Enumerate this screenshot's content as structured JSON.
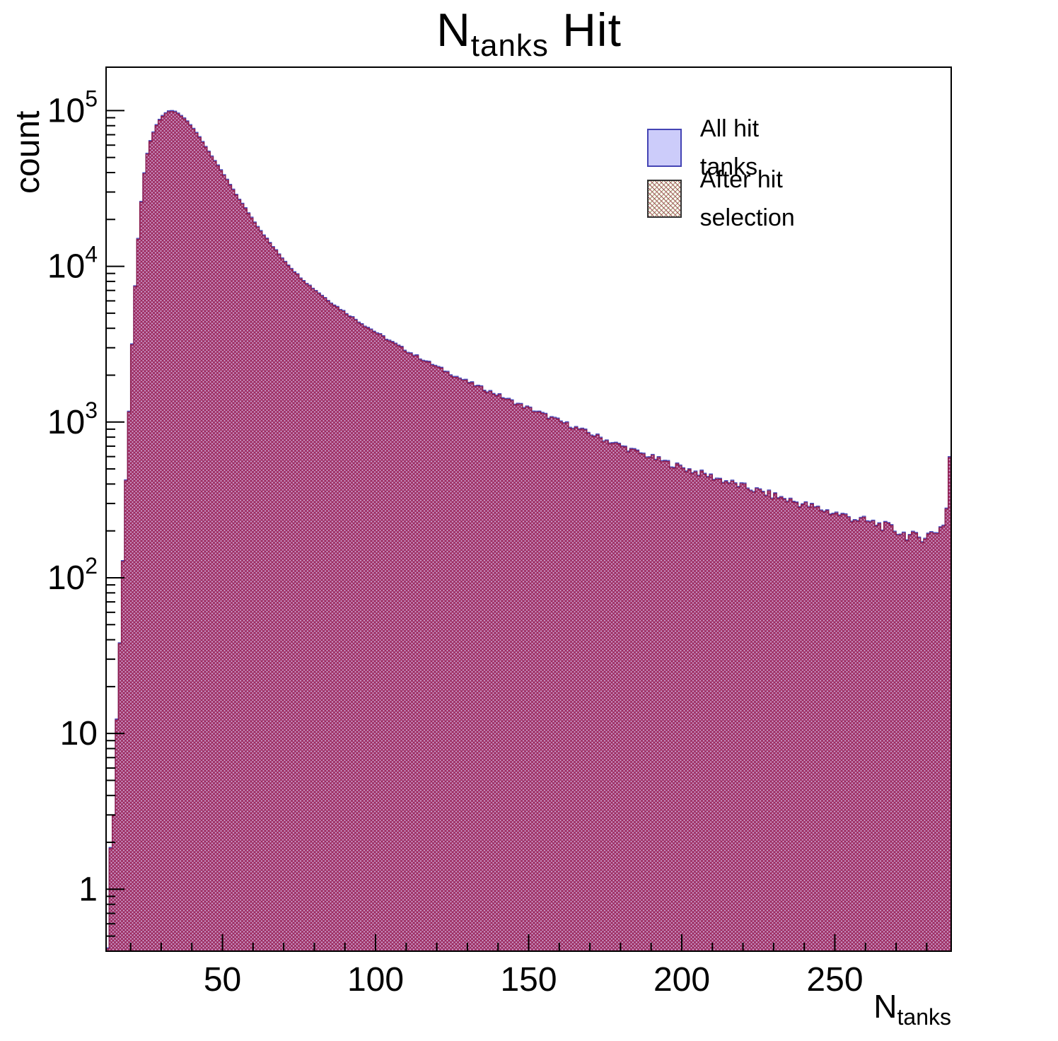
{
  "title": {
    "pre": "N",
    "sub": "tanks",
    "post": " Hit"
  },
  "y_axis_label": "count",
  "x_axis_label": {
    "pre": "N",
    "sub": "tanks"
  },
  "legend": {
    "position": "top-right",
    "items": [
      {
        "label": "All hit tanks",
        "swatch": "solid-blue"
      },
      {
        "label": "After hit selection",
        "swatch": "crosshatch-red"
      }
    ]
  },
  "colors": {
    "all_fill": "#ccccfa",
    "all_edge": "#4646b8",
    "sel_hatch": "#9c2a5e",
    "sel_wash": "rgba(200,80,130,0.38)",
    "sel_edge": "#8b1a4a",
    "frame": "#000000"
  },
  "chart_data": {
    "type": "histogram",
    "title": "N_tanks Hit",
    "xlabel": "N_tanks",
    "ylabel": "count",
    "x_range": [
      12,
      288
    ],
    "bin_width": 1,
    "y_scale": "log",
    "y_range": [
      0.4,
      190000
    ],
    "x_major_ticks": [
      50,
      100,
      150,
      200,
      250
    ],
    "x_minor_tick_step": 10,
    "y_tick_exponents": [
      0,
      1,
      2,
      3,
      4,
      5
    ],
    "grid": false,
    "legend_position": "top-right",
    "series": [
      {
        "name": "All hit tanks",
        "style": "solid-blue",
        "anchors": [
          [
            12.5,
            0.55
          ],
          [
            13.5,
            1.5
          ],
          [
            14.5,
            4
          ],
          [
            15.5,
            12
          ],
          [
            16.5,
            40
          ],
          [
            17.5,
            130
          ],
          [
            18.5,
            420
          ],
          [
            19.5,
            1200
          ],
          [
            20.5,
            3200
          ],
          [
            21.5,
            7500
          ],
          [
            22.5,
            15000
          ],
          [
            23.5,
            26000
          ],
          [
            24.5,
            40000
          ],
          [
            25.5,
            53000
          ],
          [
            26.5,
            64000
          ],
          [
            27.5,
            73000
          ],
          [
            28.5,
            81000
          ],
          [
            29.5,
            88000
          ],
          [
            30.5,
            93000
          ],
          [
            31.5,
            97000
          ],
          [
            32.5,
            99500
          ],
          [
            33.5,
            100000
          ],
          [
            34.5,
            99000
          ],
          [
            35.5,
            96500
          ],
          [
            37,
            92000
          ],
          [
            39,
            84000
          ],
          [
            41,
            75000
          ],
          [
            43,
            65500
          ],
          [
            45,
            57000
          ],
          [
            47,
            49500
          ],
          [
            49,
            43000
          ],
          [
            51,
            37500
          ],
          [
            54,
            30000
          ],
          [
            57,
            24500
          ],
          [
            60,
            20000
          ],
          [
            63,
            16500
          ],
          [
            66,
            13800
          ],
          [
            69,
            11700
          ],
          [
            72,
            10000
          ],
          [
            75,
            8700
          ],
          [
            78,
            7700
          ],
          [
            81,
            6900
          ],
          [
            84,
            6200
          ],
          [
            87,
            5600
          ],
          [
            90,
            5100
          ],
          [
            93,
            4650
          ],
          [
            96,
            4250
          ],
          [
            100,
            3800
          ],
          [
            104,
            3400
          ],
          [
            108,
            3050
          ],
          [
            112,
            2750
          ],
          [
            116,
            2500
          ],
          [
            120,
            2280
          ],
          [
            124,
            2080
          ],
          [
            128,
            1900
          ],
          [
            132,
            1750
          ],
          [
            136,
            1620
          ],
          [
            140,
            1500
          ],
          [
            144,
            1380
          ],
          [
            148,
            1280
          ],
          [
            152,
            1190
          ],
          [
            156,
            1100
          ],
          [
            160,
            1020
          ],
          [
            164,
            950
          ],
          [
            168,
            880
          ],
          [
            172,
            820
          ],
          [
            176,
            760
          ],
          [
            180,
            710
          ],
          [
            184,
            660
          ],
          [
            188,
            620
          ],
          [
            192,
            580
          ],
          [
            196,
            545
          ],
          [
            200,
            515
          ],
          [
            204,
            485
          ],
          [
            208,
            460
          ],
          [
            212,
            435
          ],
          [
            216,
            410
          ],
          [
            220,
            388
          ],
          [
            224,
            368
          ],
          [
            228,
            348
          ],
          [
            232,
            330
          ],
          [
            236,
            313
          ],
          [
            240,
            297
          ],
          [
            244,
            282
          ],
          [
            248,
            268
          ],
          [
            252,
            255
          ],
          [
            256,
            243
          ],
          [
            260,
            232
          ],
          [
            264,
            222
          ],
          [
            268,
            210
          ],
          [
            271,
            198
          ],
          [
            274,
            188
          ],
          [
            277,
            182
          ],
          [
            280,
            188
          ],
          [
            282,
            196
          ],
          [
            284,
            205
          ],
          [
            285.5,
            225
          ],
          [
            286.5,
            280
          ],
          [
            287.5,
            600
          ]
        ]
      },
      {
        "name": "After hit selection",
        "style": "crosshatch-red",
        "derived_from": "All hit tanks",
        "factor": 0.985
      }
    ]
  }
}
